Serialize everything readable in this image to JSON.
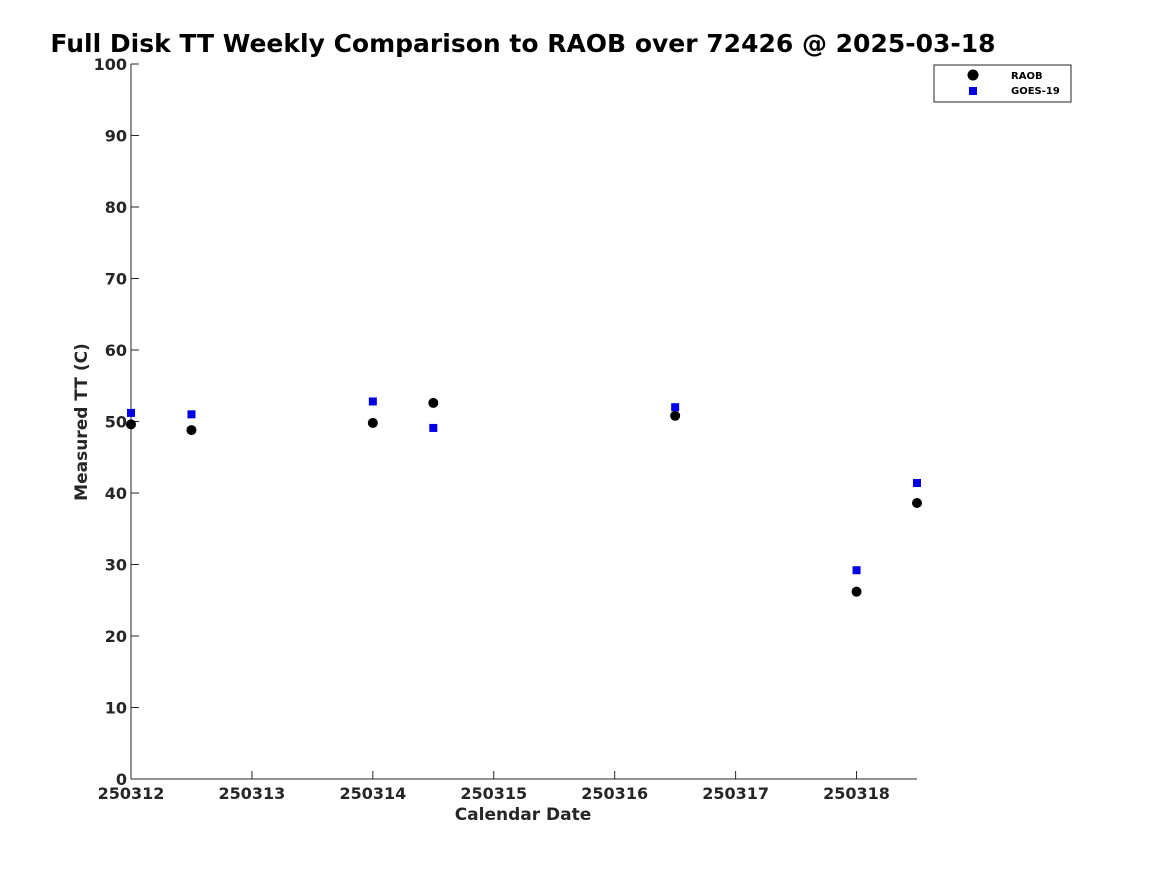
{
  "chart_data": {
    "type": "scatter",
    "title": "Full Disk TT Weekly Comparison to RAOB over 72426 @ 2025-03-18",
    "xlabel": "Calendar Date",
    "ylabel": "Measured TT (C)",
    "xlim": [
      0,
      6.5
    ],
    "ylim": [
      0,
      100
    ],
    "x_ticks": [
      0,
      1,
      2,
      3,
      4,
      5,
      6
    ],
    "x_tick_labels": [
      "250312",
      "250313",
      "250314",
      "250315",
      "250316",
      "250317",
      "250318"
    ],
    "y_ticks": [
      0,
      10,
      20,
      30,
      40,
      50,
      60,
      70,
      80,
      90,
      100
    ],
    "y_tick_labels": [
      "0",
      "10",
      "20",
      "30",
      "40",
      "50",
      "60",
      "70",
      "80",
      "90",
      "100"
    ],
    "grid": false,
    "legend_position": "top-right",
    "series": [
      {
        "name": "RAOB",
        "marker": "circle",
        "color": "#000000",
        "x": [
          0,
          0.5,
          2,
          2.5,
          4.5,
          6,
          6.5
        ],
        "y": [
          49.6,
          48.8,
          49.8,
          52.6,
          50.8,
          26.2,
          38.6
        ]
      },
      {
        "name": "GOES-19",
        "marker": "square",
        "color": "#0000e6",
        "x": [
          0,
          0.5,
          2,
          2.5,
          4.5,
          6,
          6.5
        ],
        "y": [
          51.2,
          51.0,
          52.8,
          49.1,
          52.0,
          29.2,
          41.4
        ]
      }
    ]
  }
}
